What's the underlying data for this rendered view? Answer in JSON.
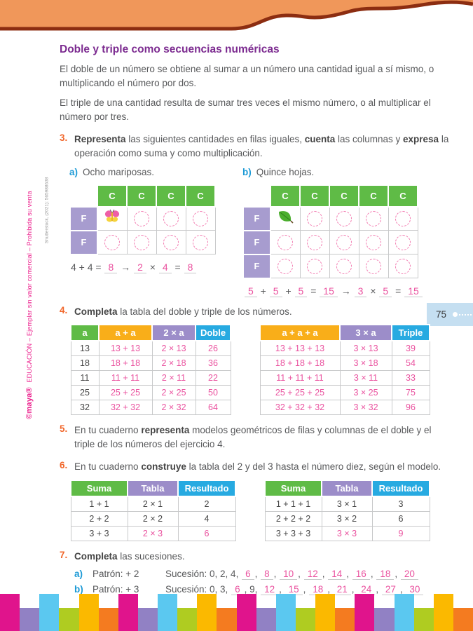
{
  "colors": {
    "green": "#5FBB46",
    "amber": "#F9AE19",
    "purple": "#9C8DC9",
    "cyan": "#27AAE1",
    "pink": "#EA529F",
    "title_purple": "#7C2B90",
    "header_orange": "#F0975A",
    "header_maroon": "#8C2D11",
    "sidebar_pink": "#EC1E8C",
    "badge_blue": "#C5DFF1"
  },
  "sidebar": {
    "brand_logo": "©maya®",
    "brand_text": "EDUCACIÓN – Ejemplar sin valor comercial – Prohibida su venta",
    "credit": "Shutterstock, (2021): 565988638"
  },
  "page_badge": {
    "number": "75"
  },
  "lesson": {
    "title": "Doble y triple como secuencias numéricas",
    "intro1": "El doble de un número se obtiene al sumar a un número una cantidad igual a sí mismo, o multiplicando el número por dos.",
    "intro2": "El triple de una cantidad resulta de sumar tres veces el mismo número, o al multiplicar el número por tres."
  },
  "ex3": {
    "number": "3.",
    "text": [
      {
        "t": "Representa",
        "s": "b"
      },
      {
        "t": " las siguientes cantidades en filas iguales, ",
        "s": ""
      },
      {
        "t": "cuenta",
        "s": "b"
      },
      {
        "t": " las columnas y ",
        "s": ""
      },
      {
        "t": "expresa",
        "s": "b"
      },
      {
        "t": " la operación como suma y como multiplicación.",
        "s": ""
      }
    ],
    "a": {
      "label": "a)",
      "caption": "Ocho mariposas.",
      "columns": [
        "C",
        "C",
        "C",
        "C"
      ],
      "row_labels": [
        "F",
        "F"
      ],
      "icon": "butterfly-icon",
      "equation": [
        {
          "t": "4 + 4 = ",
          "s": ""
        },
        {
          "t": "8",
          "s": "f"
        },
        {
          "t": " → ",
          "s": ""
        },
        {
          "t": "2",
          "s": "f"
        },
        {
          "t": " × ",
          "s": ""
        },
        {
          "t": "4",
          "s": "f"
        },
        {
          "t": " = ",
          "s": ""
        },
        {
          "t": "8",
          "s": "f"
        }
      ]
    },
    "b": {
      "label": "b)",
      "caption": "Quince hojas.",
      "columns": [
        "C",
        "C",
        "C",
        "C",
        "C"
      ],
      "row_labels": [
        "F",
        "F",
        "F"
      ],
      "icon": "leaf-icon",
      "equation": [
        {
          "t": "5",
          "s": "f"
        },
        {
          "t": " + ",
          "s": ""
        },
        {
          "t": "5",
          "s": "f"
        },
        {
          "t": " + ",
          "s": ""
        },
        {
          "t": "5",
          "s": "f"
        },
        {
          "t": " = ",
          "s": ""
        },
        {
          "t": "15",
          "s": "f"
        },
        {
          "t": " → ",
          "s": ""
        },
        {
          "t": "3",
          "s": "f"
        },
        {
          "t": " × ",
          "s": ""
        },
        {
          "t": "5",
          "s": "f"
        },
        {
          "t": " = ",
          "s": ""
        },
        {
          "t": "15",
          "s": "f"
        }
      ]
    }
  },
  "ex4": {
    "number": "4.",
    "text": [
      {
        "t": "Completa",
        "s": "b"
      },
      {
        "t": " la tabla del doble y triple de los números.",
        "s": ""
      }
    ],
    "left": {
      "headers": [
        {
          "label": "a",
          "bg": "green"
        },
        {
          "label": "a + a",
          "bg": "amber"
        },
        {
          "label": "2 × a",
          "bg": "purple"
        },
        {
          "label": "Doble",
          "bg": "cyan"
        }
      ],
      "rows": [
        [
          {
            "t": "13"
          },
          {
            "t": "13 + 13",
            "pink": true
          },
          {
            "t": "2 × 13",
            "pink": true
          },
          {
            "t": "26",
            "pink": true
          }
        ],
        [
          {
            "t": "18"
          },
          {
            "t": "18 + 18",
            "pink": true
          },
          {
            "t": "2 × 18",
            "pink": true
          },
          {
            "t": "36",
            "pink": true
          }
        ],
        [
          {
            "t": "11"
          },
          {
            "t": "11 + 11",
            "pink": true
          },
          {
            "t": "2 × 11",
            "pink": true
          },
          {
            "t": "22",
            "pink": true
          }
        ],
        [
          {
            "t": "25"
          },
          {
            "t": "25 + 25",
            "pink": true
          },
          {
            "t": "2 × 25",
            "pink": true
          },
          {
            "t": "50",
            "pink": true
          }
        ],
        [
          {
            "t": "32"
          },
          {
            "t": "32 + 32",
            "pink": true
          },
          {
            "t": "2 × 32",
            "pink": true
          },
          {
            "t": "64",
            "pink": true
          }
        ]
      ]
    },
    "right": {
      "headers": [
        {
          "label": "a + a + a",
          "bg": "amber"
        },
        {
          "label": "3 × a",
          "bg": "purple"
        },
        {
          "label": "Triple",
          "bg": "cyan"
        }
      ],
      "rows": [
        [
          {
            "t": "13 + 13 + 13",
            "pink": true
          },
          {
            "t": "3 × 13",
            "pink": true
          },
          {
            "t": "39",
            "pink": true
          }
        ],
        [
          {
            "t": "18 + 18 + 18",
            "pink": true
          },
          {
            "t": "3 × 18",
            "pink": true
          },
          {
            "t": "54",
            "pink": true
          }
        ],
        [
          {
            "t": "11 + 11 + 11",
            "pink": true
          },
          {
            "t": "3 × 11",
            "pink": true
          },
          {
            "t": "33",
            "pink": true
          }
        ],
        [
          {
            "t": "25 + 25 + 25",
            "pink": true
          },
          {
            "t": "3 × 25",
            "pink": true
          },
          {
            "t": "75",
            "pink": true
          }
        ],
        [
          {
            "t": "32 + 32 + 32",
            "pink": true
          },
          {
            "t": "3 × 32",
            "pink": true
          },
          {
            "t": "96",
            "pink": true
          }
        ]
      ]
    }
  },
  "ex5": {
    "number": "5.",
    "text": [
      {
        "t": "En tu cuaderno ",
        "s": ""
      },
      {
        "t": "representa",
        "s": "b"
      },
      {
        "t": " modelos geométricos de filas y columnas de el doble y el triple de los números del ejercicio 4.",
        "s": ""
      }
    ]
  },
  "ex6": {
    "number": "6.",
    "text": [
      {
        "t": "En tu cuaderno ",
        "s": ""
      },
      {
        "t": "construye",
        "s": "b"
      },
      {
        "t": " la tabla del 2 y del 3 hasta el número diez, según el modelo.",
        "s": ""
      }
    ],
    "left": {
      "headers": [
        {
          "label": "Suma",
          "bg": "green"
        },
        {
          "label": "Tabla",
          "bg": "purple"
        },
        {
          "label": "Resultado",
          "bg": "cyan"
        }
      ],
      "rows": [
        [
          {
            "t": "1 + 1"
          },
          {
            "t": "2 × 1"
          },
          {
            "t": "2"
          }
        ],
        [
          {
            "t": "2 + 2"
          },
          {
            "t": "2 × 2"
          },
          {
            "t": "4"
          }
        ],
        [
          {
            "t": "3 + 3"
          },
          {
            "t": "2 × 3",
            "pink": true
          },
          {
            "t": "6",
            "pink": true
          }
        ]
      ]
    },
    "right": {
      "headers": [
        {
          "label": "Suma",
          "bg": "green"
        },
        {
          "label": "Tabla",
          "bg": "purple"
        },
        {
          "label": "Resultado",
          "bg": "cyan"
        }
      ],
      "rows": [
        [
          {
            "t": "1 + 1 + 1"
          },
          {
            "t": "3 × 1"
          },
          {
            "t": "3"
          }
        ],
        [
          {
            "t": "2 + 2 + 2"
          },
          {
            "t": "3 × 2"
          },
          {
            "t": "6"
          }
        ],
        [
          {
            "t": "3 + 3 + 3"
          },
          {
            "t": "3 × 3",
            "pink": true
          },
          {
            "t": "9",
            "pink": true
          }
        ]
      ]
    }
  },
  "ex7": {
    "number": "7.",
    "text": [
      {
        "t": "Completa",
        "s": "b"
      },
      {
        "t": " las sucesiones.",
        "s": ""
      }
    ],
    "a": {
      "label": "a)",
      "pattern": "Patrón: + 2",
      "sequence": [
        {
          "t": "Sucesión: 0, 2, 4, ",
          "s": ""
        },
        {
          "t": "6",
          "s": "f"
        },
        {
          "t": ", ",
          "s": ""
        },
        {
          "t": "8",
          "s": "f"
        },
        {
          "t": ", ",
          "s": ""
        },
        {
          "t": "10",
          "s": "f"
        },
        {
          "t": ", ",
          "s": ""
        },
        {
          "t": "12",
          "s": "f"
        },
        {
          "t": ", ",
          "s": ""
        },
        {
          "t": "14",
          "s": "f"
        },
        {
          "t": ", ",
          "s": ""
        },
        {
          "t": "16",
          "s": "f"
        },
        {
          "t": ", ",
          "s": ""
        },
        {
          "t": "18",
          "s": "f"
        },
        {
          "t": ", ",
          "s": ""
        },
        {
          "t": "20",
          "s": "f"
        }
      ]
    },
    "b": {
      "label": "b)",
      "pattern": "Patrón: + 3",
      "sequence": [
        {
          "t": "Sucesión: 0, 3, ",
          "s": ""
        },
        {
          "t": "6",
          "s": "f"
        },
        {
          "t": ", 9, ",
          "s": ""
        },
        {
          "t": "12",
          "s": "f"
        },
        {
          "t": ", ",
          "s": ""
        },
        {
          "t": "15",
          "s": "f"
        },
        {
          "t": ", ",
          "s": ""
        },
        {
          "t": "18",
          "s": "f"
        },
        {
          "t": ", ",
          "s": ""
        },
        {
          "t": "21",
          "s": "f"
        },
        {
          "t": ", ",
          "s": ""
        },
        {
          "t": "24",
          "s": "f"
        },
        {
          "t": ", ",
          "s": ""
        },
        {
          "t": "27",
          "s": "f"
        },
        {
          "t": ", ",
          "s": ""
        },
        {
          "t": "30",
          "s": "f"
        }
      ]
    }
  },
  "footer": {
    "bar_colors": [
      "#E0148C",
      "#9181C4",
      "#5BC8F0",
      "#AFCC21",
      "#FBB900",
      "#F47B20",
      "#E0148C",
      "#9181C4",
      "#5BC8F0",
      "#AFCC21",
      "#FBB900",
      "#F47B20",
      "#E0148C",
      "#9181C4",
      "#5BC8F0",
      "#AFCC21",
      "#FBB900",
      "#F47B20",
      "#E0148C",
      "#9181C4",
      "#5BC8F0",
      "#AFCC21",
      "#FBB900",
      "#F47B20"
    ]
  }
}
